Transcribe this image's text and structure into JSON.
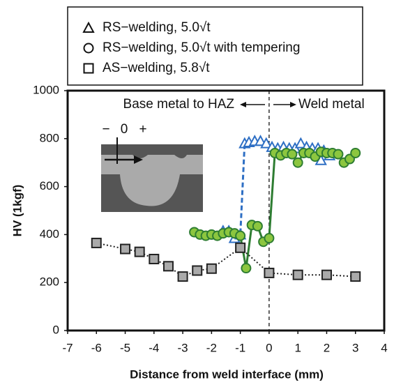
{
  "chart_data": {
    "type": "line",
    "xlabel": "Distance from weld interface (mm)",
    "ylabel": "HV (1kgf)",
    "xlim": [
      -7,
      4
    ],
    "xticks": [
      -7,
      -6,
      -5,
      -4,
      -3,
      -2,
      -1,
      0,
      1,
      2,
      3,
      4
    ],
    "ylim": [
      0,
      1000
    ],
    "yticks": [
      0,
      200,
      400,
      600,
      800,
      1000
    ],
    "grid": false,
    "vline": 0,
    "annotations": [
      "Base metal to HAZ",
      "Weld metal",
      "−",
      "0",
      "+"
    ],
    "series": [
      {
        "name": "RS−welding, 5.0√t",
        "color": "#2e6fc4",
        "marker": "triangle",
        "line_style": "dashed",
        "x": [
          -1.6,
          -1.4,
          -1.2,
          -1.0,
          -0.85,
          -0.7,
          -0.5,
          -0.3,
          -0.1,
          0.1,
          0.3,
          0.5,
          0.7,
          0.9,
          1.1,
          1.3,
          1.5,
          1.7,
          1.8,
          1.9,
          2.1
        ],
        "values": [
          415,
          415,
          385,
          400,
          780,
          785,
          790,
          790,
          780,
          765,
          760,
          765,
          760,
          760,
          780,
          765,
          760,
          760,
          710,
          750,
          730
        ]
      },
      {
        "name": "RS−welding, 5.0√t with tempering",
        "color": "#2e7d32",
        "marker": "circle",
        "line_style": "solid",
        "x": [
          -2.6,
          -2.4,
          -2.2,
          -2.0,
          -1.8,
          -1.6,
          -1.4,
          -1.2,
          -1.0,
          -0.8,
          -0.6,
          -0.4,
          -0.2,
          0,
          0.2,
          0.4,
          0.6,
          0.8,
          1.0,
          1.2,
          1.4,
          1.6,
          1.8,
          2.0,
          2.2,
          2.4,
          2.6,
          2.8,
          3.0
        ],
        "values": [
          410,
          400,
          395,
          400,
          395,
          405,
          410,
          405,
          395,
          260,
          440,
          435,
          370,
          385,
          740,
          730,
          740,
          735,
          700,
          740,
          740,
          725,
          745,
          740,
          740,
          735,
          700,
          715,
          740
        ]
      },
      {
        "name": "AS−welding, 5.8√t",
        "color": "#222222",
        "marker": "square",
        "line_style": "dotted",
        "x": [
          -6,
          -5,
          -4.5,
          -4,
          -3.5,
          -3,
          -2.5,
          -2,
          -1,
          0,
          1,
          2,
          3
        ],
        "values": [
          365,
          340,
          328,
          298,
          268,
          225,
          250,
          258,
          345,
          240,
          232,
          232,
          225
        ]
      }
    ]
  }
}
